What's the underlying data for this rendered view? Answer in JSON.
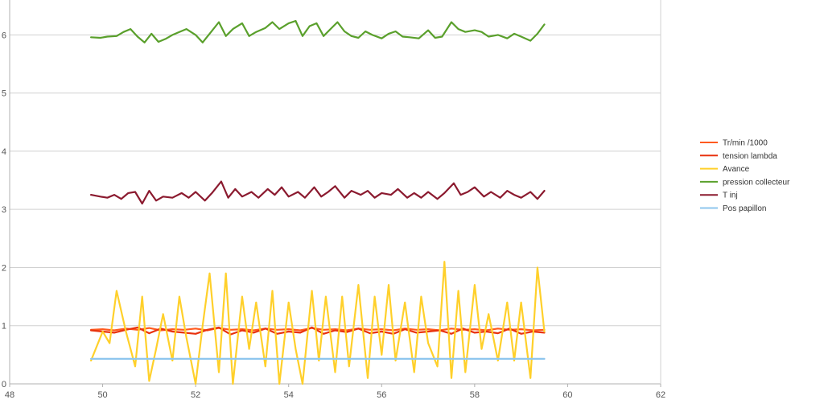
{
  "chart_data": {
    "type": "line",
    "title": "",
    "xlabel": "",
    "ylabel": "",
    "xlim": [
      48,
      62
    ],
    "ylim": [
      0,
      6.6
    ],
    "x_ticks": [
      48,
      50,
      52,
      54,
      56,
      58,
      60,
      62
    ],
    "y_ticks": [
      0,
      1,
      2,
      3,
      4,
      5,
      6
    ],
    "grid": "horizontal",
    "legend_position": "right",
    "series": [
      {
        "name": "Tr/min /1000",
        "color": "#ff5a1f",
        "x": [
          49.75,
          50.0,
          50.25,
          50.5,
          50.75,
          51.0,
          51.25,
          51.5,
          51.75,
          52.0,
          52.25,
          52.5,
          52.75,
          53.0,
          53.25,
          53.5,
          53.75,
          54.0,
          54.25,
          54.5,
          54.75,
          55.0,
          55.25,
          55.5,
          55.75,
          56.0,
          56.25,
          56.5,
          56.75,
          57.0,
          57.25,
          57.5,
          57.75,
          58.0,
          58.25,
          58.5,
          58.75,
          59.0,
          59.25,
          59.5
        ],
        "values": [
          0.93,
          0.94,
          0.92,
          0.95,
          0.93,
          0.96,
          0.92,
          0.94,
          0.93,
          0.95,
          0.92,
          0.96,
          0.93,
          0.94,
          0.92,
          0.95,
          0.93,
          0.94,
          0.92,
          0.96,
          0.93,
          0.94,
          0.92,
          0.95,
          0.93,
          0.94,
          0.92,
          0.95,
          0.93,
          0.94,
          0.92,
          0.95,
          0.93,
          0.94,
          0.92,
          0.95,
          0.93,
          0.94,
          0.92,
          0.93
        ]
      },
      {
        "name": "tension lambda",
        "color": "#e8320e",
        "x": [
          49.75,
          50.0,
          50.25,
          50.5,
          50.75,
          51.0,
          51.25,
          51.5,
          51.75,
          52.0,
          52.25,
          52.5,
          52.75,
          53.0,
          53.25,
          53.5,
          53.75,
          54.0,
          54.25,
          54.5,
          54.75,
          55.0,
          55.25,
          55.5,
          55.75,
          56.0,
          56.25,
          56.5,
          56.75,
          57.0,
          57.25,
          57.5,
          57.75,
          58.0,
          58.25,
          58.5,
          58.75,
          59.0,
          59.25,
          59.5
        ],
        "values": [
          0.92,
          0.9,
          0.88,
          0.93,
          0.97,
          0.87,
          0.95,
          0.9,
          0.88,
          0.86,
          0.93,
          0.97,
          0.85,
          0.92,
          0.88,
          0.95,
          0.86,
          0.9,
          0.88,
          0.97,
          0.86,
          0.92,
          0.89,
          0.95,
          0.87,
          0.9,
          0.86,
          0.94,
          0.88,
          0.9,
          0.92,
          0.86,
          0.95,
          0.88,
          0.9,
          0.87,
          0.95,
          0.86,
          0.9,
          0.88
        ]
      },
      {
        "name": "Avance",
        "color": "#ffd02b",
        "x": [
          49.75,
          50.0,
          50.15,
          50.3,
          50.5,
          50.7,
          50.85,
          51.0,
          51.15,
          51.3,
          51.5,
          51.65,
          51.8,
          52.0,
          52.15,
          52.3,
          52.5,
          52.65,
          52.8,
          53.0,
          53.15,
          53.3,
          53.5,
          53.65,
          53.8,
          54.0,
          54.15,
          54.3,
          54.5,
          54.65,
          54.8,
          55.0,
          55.15,
          55.3,
          55.5,
          55.7,
          55.85,
          56.0,
          56.15,
          56.3,
          56.5,
          56.7,
          56.85,
          57.0,
          57.2,
          57.35,
          57.5,
          57.65,
          57.8,
          58.0,
          58.15,
          58.3,
          58.5,
          58.7,
          58.85,
          59.0,
          59.2,
          59.35,
          59.5
        ],
        "values": [
          0.4,
          0.9,
          0.7,
          1.6,
          0.9,
          0.3,
          1.5,
          0.05,
          0.6,
          1.2,
          0.4,
          1.5,
          0.8,
          0.0,
          1.0,
          1.9,
          0.2,
          1.9,
          0.0,
          1.5,
          0.6,
          1.4,
          0.3,
          1.6,
          0.0,
          1.4,
          0.6,
          0.0,
          1.6,
          0.4,
          1.5,
          0.2,
          1.5,
          0.3,
          1.7,
          0.1,
          1.5,
          0.5,
          1.7,
          0.4,
          1.4,
          0.2,
          1.5,
          0.7,
          0.3,
          2.1,
          0.1,
          1.6,
          0.2,
          1.7,
          0.6,
          1.2,
          0.4,
          1.4,
          0.4,
          1.4,
          0.1,
          2.0,
          0.9
        ]
      },
      {
        "name": "pression collecteur",
        "color": "#5aa02c",
        "x": [
          49.75,
          49.95,
          50.1,
          50.3,
          50.45,
          50.6,
          50.75,
          50.9,
          51.05,
          51.2,
          51.35,
          51.5,
          51.65,
          51.8,
          52.0,
          52.15,
          52.3,
          52.5,
          52.65,
          52.8,
          53.0,
          53.15,
          53.3,
          53.5,
          53.65,
          53.8,
          54.0,
          54.15,
          54.3,
          54.45,
          54.6,
          54.75,
          54.9,
          55.05,
          55.2,
          55.35,
          55.5,
          55.65,
          55.8,
          56.0,
          56.15,
          56.3,
          56.45,
          56.6,
          56.8,
          57.0,
          57.15,
          57.3,
          57.5,
          57.65,
          57.8,
          58.0,
          58.15,
          58.3,
          58.5,
          58.7,
          58.85,
          59.0,
          59.2,
          59.35,
          59.5
        ],
        "values": [
          5.96,
          5.95,
          5.97,
          5.98,
          6.05,
          6.1,
          5.97,
          5.87,
          6.02,
          5.88,
          5.93,
          6.0,
          6.05,
          6.1,
          6.0,
          5.87,
          6.02,
          6.22,
          5.98,
          6.1,
          6.2,
          5.98,
          6.05,
          6.12,
          6.22,
          6.1,
          6.2,
          6.24,
          5.98,
          6.15,
          6.2,
          5.98,
          6.1,
          6.22,
          6.06,
          5.98,
          5.95,
          6.06,
          6.0,
          5.94,
          6.02,
          6.06,
          5.97,
          5.96,
          5.94,
          6.08,
          5.95,
          5.97,
          6.22,
          6.1,
          6.05,
          6.08,
          6.05,
          5.97,
          6.0,
          5.94,
          6.02,
          5.97,
          5.9,
          6.02,
          6.18
        ]
      },
      {
        "name": "T inj",
        "color": "#8b1a2f",
        "x": [
          49.75,
          49.95,
          50.1,
          50.25,
          50.4,
          50.55,
          50.7,
          50.85,
          51.0,
          51.15,
          51.3,
          51.5,
          51.7,
          51.85,
          52.0,
          52.2,
          52.35,
          52.55,
          52.7,
          52.85,
          53.0,
          53.2,
          53.35,
          53.55,
          53.7,
          53.85,
          54.0,
          54.2,
          54.35,
          54.55,
          54.7,
          54.85,
          55.0,
          55.2,
          55.35,
          55.55,
          55.7,
          55.85,
          56.0,
          56.2,
          56.35,
          56.55,
          56.7,
          56.85,
          57.0,
          57.2,
          57.35,
          57.55,
          57.7,
          57.85,
          58.0,
          58.2,
          58.35,
          58.55,
          58.7,
          58.85,
          59.0,
          59.2,
          59.35,
          59.5
        ],
        "values": [
          3.25,
          3.22,
          3.2,
          3.25,
          3.18,
          3.28,
          3.3,
          3.1,
          3.32,
          3.15,
          3.22,
          3.2,
          3.28,
          3.2,
          3.3,
          3.15,
          3.28,
          3.48,
          3.2,
          3.35,
          3.22,
          3.3,
          3.2,
          3.35,
          3.25,
          3.38,
          3.22,
          3.3,
          3.2,
          3.38,
          3.22,
          3.3,
          3.4,
          3.2,
          3.32,
          3.25,
          3.32,
          3.2,
          3.28,
          3.25,
          3.35,
          3.2,
          3.28,
          3.2,
          3.3,
          3.18,
          3.28,
          3.45,
          3.25,
          3.3,
          3.38,
          3.22,
          3.3,
          3.2,
          3.32,
          3.25,
          3.2,
          3.3,
          3.18,
          3.32
        ]
      },
      {
        "name": "Pos papillon",
        "color": "#8ec6ee",
        "x": [
          49.75,
          59.5
        ],
        "values": [
          0.43,
          0.43
        ]
      }
    ]
  }
}
